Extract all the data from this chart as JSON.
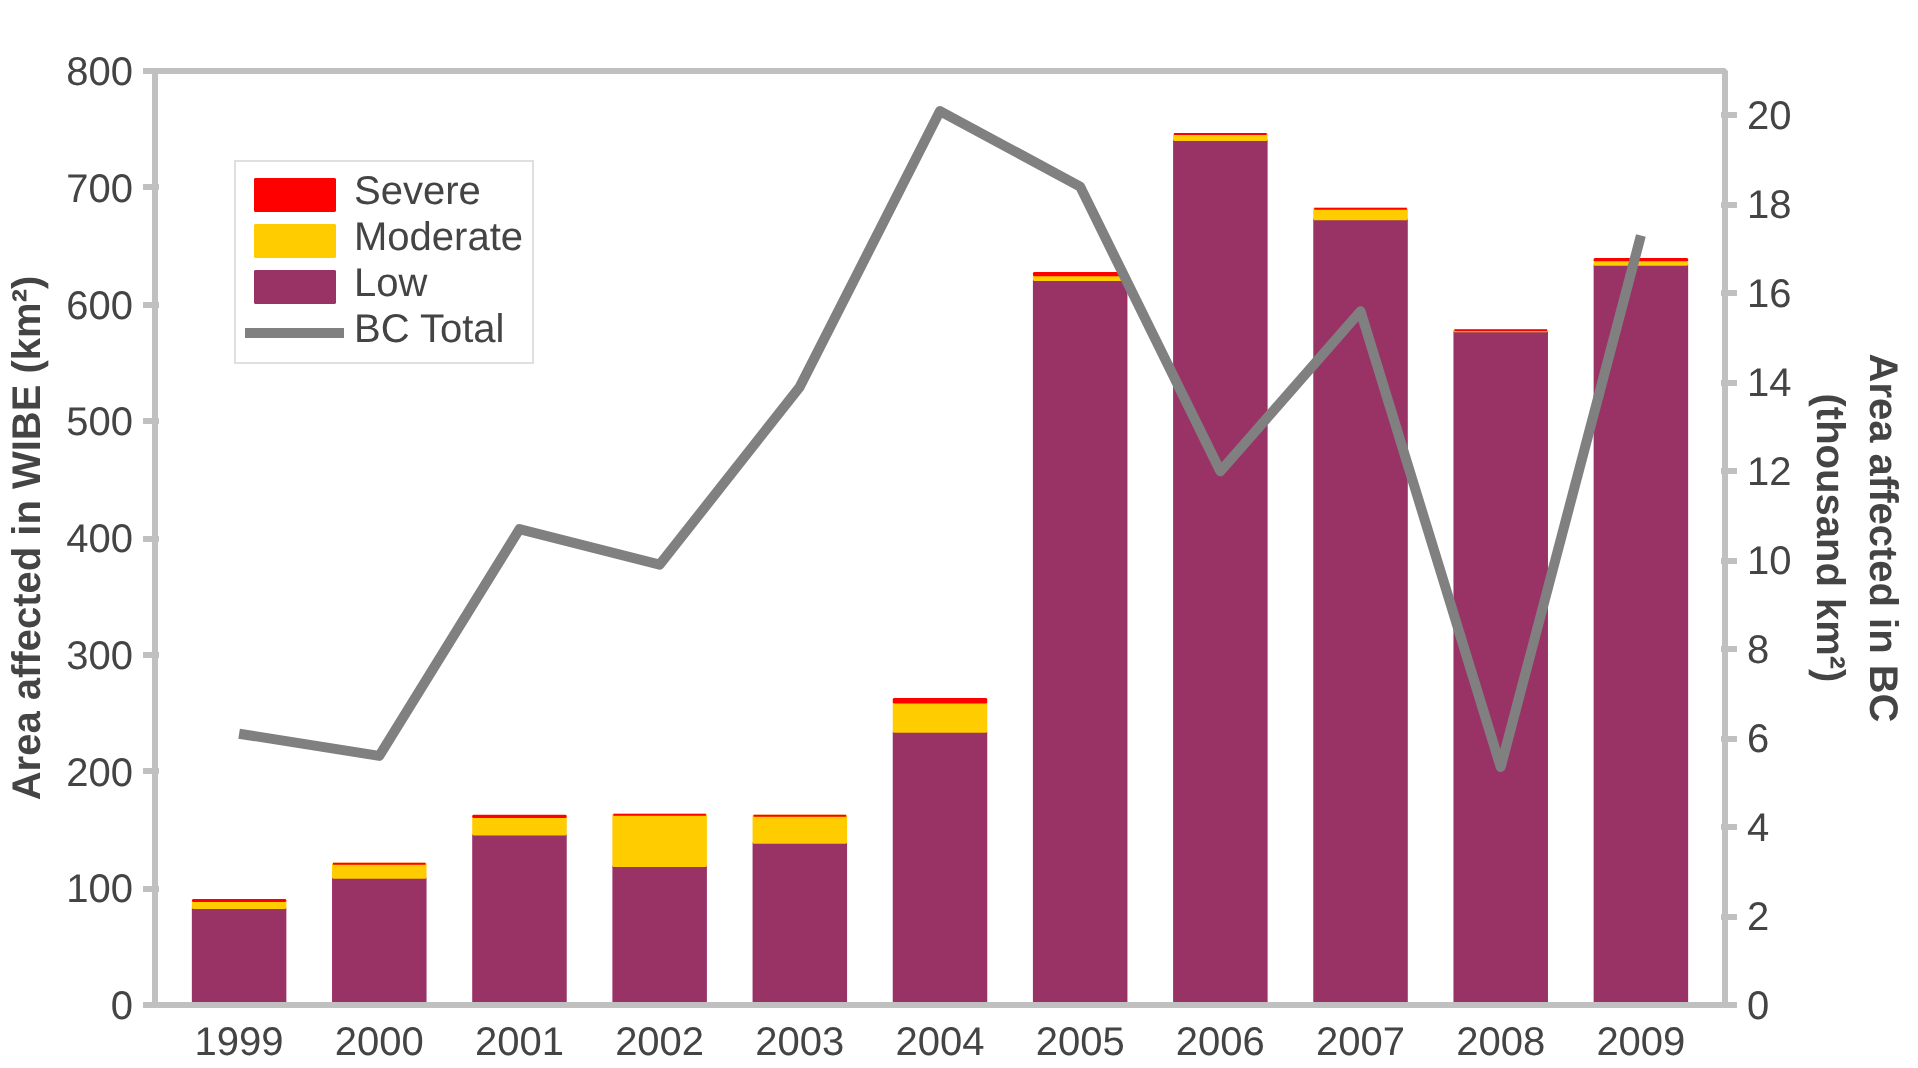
{
  "chart_data": {
    "type": "bar",
    "stacked": true,
    "categories": [
      "1999",
      "2000",
      "2001",
      "2002",
      "2003",
      "2004",
      "2005",
      "2006",
      "2007",
      "2008",
      "2009"
    ],
    "ylabel": "Area affected in WIBE (km²)",
    "y2label": "Area affected in BC\n(thousand km²)",
    "ylim": [
      0,
      800
    ],
    "yticks": [
      0,
      100,
      200,
      300,
      400,
      500,
      600,
      700,
      800
    ],
    "y2lim": [
      0,
      21
    ],
    "y2ticks": [
      0,
      2,
      4,
      6,
      8,
      10,
      12,
      14,
      16,
      18,
      20
    ],
    "grid": false,
    "legend": "top left",
    "series": [
      {
        "name": "Low",
        "color": "#993366",
        "values": [
          83,
          109,
          146,
          119,
          139,
          234,
          621,
          741,
          673,
          577,
          634
        ]
      },
      {
        "name": "Moderate",
        "color": "#ffcc00",
        "values": [
          6,
          12,
          15,
          44,
          23,
          25,
          4,
          5,
          9,
          1,
          4
        ]
      },
      {
        "name": "Severe",
        "color": "#ff0000",
        "values": [
          1,
          0,
          1,
          0,
          0,
          3,
          2,
          0,
          0,
          0,
          1
        ]
      },
      {
        "name": "BC Total",
        "type": "line",
        "axis": "y2",
        "color": "#808080",
        "line_style": "solid",
        "marker": "none",
        "values": [
          6.1,
          5.6,
          10.7,
          9.9,
          13.9,
          20.1,
          18.4,
          12.0,
          15.6,
          5.35,
          17.3
        ]
      }
    ]
  }
}
